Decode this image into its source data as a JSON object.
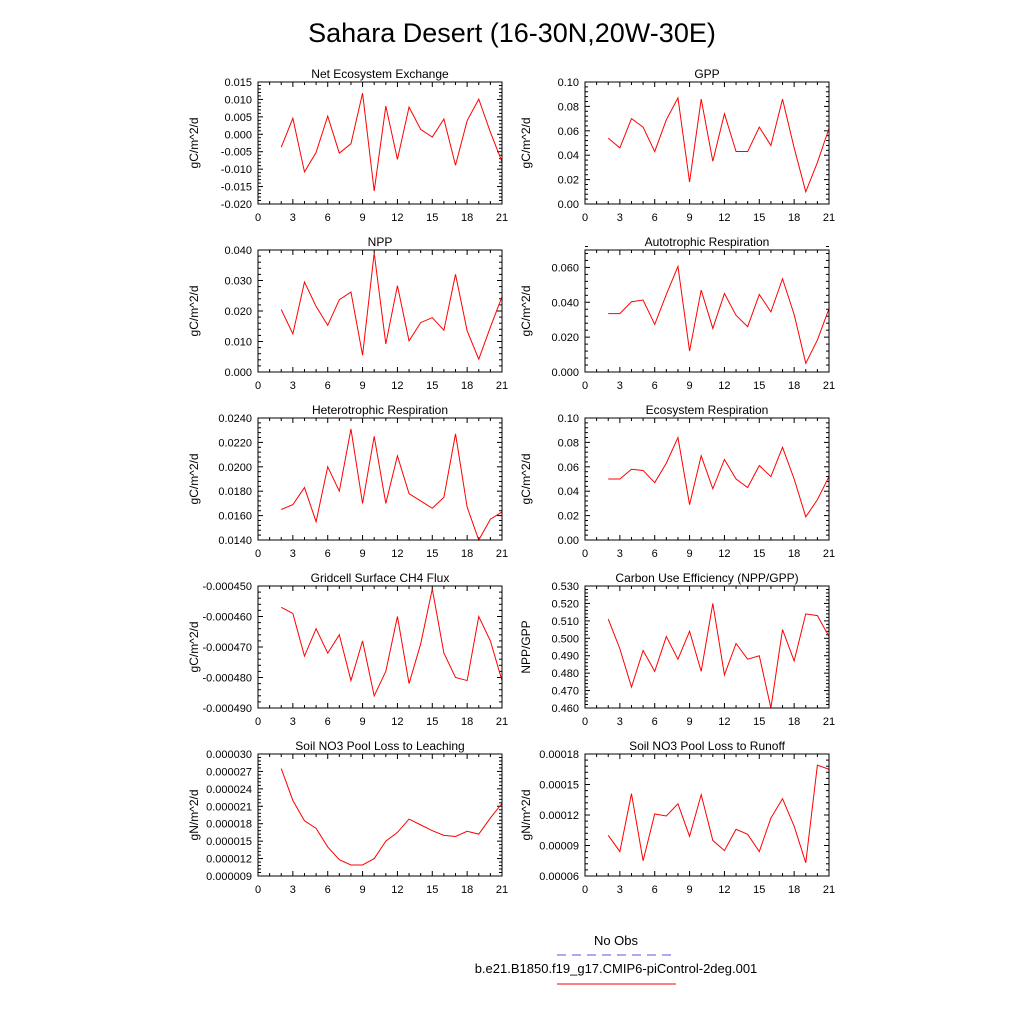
{
  "title": "Sahara Desert (16-30N,20W-30E)",
  "colors": {
    "series": "#ff0000",
    "obs": "#5555ee",
    "axis": "#000000"
  },
  "legend": {
    "obs_label": "No Obs",
    "model_label": "b.e21.B1850.f19_g17.CMIP6-piControl-2deg.001"
  },
  "chart_data": [
    {
      "type": "line",
      "title": "Net Ecosystem Exchange",
      "ylabel": "gC/m^2/d",
      "xlim": [
        0,
        21
      ],
      "xticks": [
        0,
        3,
        6,
        9,
        12,
        15,
        18,
        21
      ],
      "ylim": [
        -0.02,
        0.015
      ],
      "yticks": [
        -0.02,
        -0.015,
        -0.01,
        -0.005,
        0.0,
        0.005,
        0.01,
        0.015
      ],
      "ytick_labels": [
        "-0.020",
        "-0.015",
        "-0.010",
        "-0.005",
        "0.000",
        "0.005",
        "0.010",
        "0.015"
      ],
      "x": [
        2,
        3,
        4,
        5,
        6,
        7,
        8,
        9,
        10,
        11,
        12,
        13,
        14,
        15,
        16,
        17,
        18,
        19,
        20,
        21
      ],
      "series": [
        {
          "values": [
            -0.0037,
            0.0046,
            -0.0108,
            -0.0052,
            0.0052,
            -0.0054,
            -0.0027,
            0.0118,
            -0.0163,
            0.0081,
            -0.0072,
            0.0078,
            0.0014,
            -0.0008,
            0.0044,
            -0.0089,
            0.0039,
            0.0101,
            0.0006,
            -0.0079
          ]
        }
      ]
    },
    {
      "type": "line",
      "title": "GPP",
      "ylabel": "gC/m^2/d",
      "xlim": [
        0,
        21
      ],
      "xticks": [
        0,
        3,
        6,
        9,
        12,
        15,
        18,
        21
      ],
      "ylim": [
        0.0,
        0.1
      ],
      "yticks": [
        0.0,
        0.02,
        0.04,
        0.06,
        0.08,
        0.1
      ],
      "ytick_labels": [
        "0.00",
        "0.02",
        "0.04",
        "0.06",
        "0.08",
        "0.10"
      ],
      "x": [
        2,
        3,
        4,
        5,
        6,
        7,
        8,
        9,
        10,
        11,
        12,
        13,
        14,
        15,
        16,
        17,
        18,
        19,
        20,
        21
      ],
      "series": [
        {
          "values": [
            0.054,
            0.046,
            0.07,
            0.063,
            0.043,
            0.069,
            0.087,
            0.018,
            0.086,
            0.035,
            0.074,
            0.043,
            0.043,
            0.063,
            0.048,
            0.086,
            0.046,
            0.01,
            0.034,
            0.062
          ]
        }
      ]
    },
    {
      "type": "line",
      "title": "NPP",
      "ylabel": "gC/m^2/d",
      "xlim": [
        0,
        21
      ],
      "xticks": [
        0,
        3,
        6,
        9,
        12,
        15,
        18,
        21
      ],
      "ylim": [
        0.0,
        0.04
      ],
      "yticks": [
        0.0,
        0.01,
        0.02,
        0.03,
        0.04
      ],
      "ytick_labels": [
        "0.000",
        "0.010",
        "0.020",
        "0.030",
        "0.040"
      ],
      "x": [
        2,
        3,
        4,
        5,
        6,
        7,
        8,
        9,
        10,
        11,
        12,
        13,
        14,
        15,
        16,
        17,
        18,
        19,
        20,
        21
      ],
      "series": [
        {
          "values": [
            0.0205,
            0.0125,
            0.0295,
            0.0215,
            0.0153,
            0.0237,
            0.0262,
            0.0055,
            0.039,
            0.0092,
            0.0283,
            0.0102,
            0.0162,
            0.0178,
            0.0137,
            0.032,
            0.0135,
            0.0042,
            0.0147,
            0.0247
          ]
        }
      ]
    },
    {
      "type": "line",
      "title": "Autotrophic Respiration",
      "ylabel": "gC/m^2/d",
      "xlim": [
        0,
        21
      ],
      "xticks": [
        0,
        3,
        6,
        9,
        12,
        15,
        18,
        21
      ],
      "ylim": [
        0.0,
        0.07
      ],
      "yticks": [
        0.0,
        0.02,
        0.04,
        0.06
      ],
      "ytick_labels": [
        "0.000",
        "0.020",
        "0.040",
        "0.060"
      ],
      "x": [
        2,
        3,
        4,
        5,
        6,
        7,
        8,
        9,
        10,
        11,
        12,
        13,
        14,
        15,
        16,
        17,
        18,
        19,
        20,
        21
      ],
      "series": [
        {
          "values": [
            0.0335,
            0.0335,
            0.0403,
            0.0413,
            0.0273,
            0.0445,
            0.0606,
            0.012,
            0.047,
            0.025,
            0.045,
            0.0325,
            0.026,
            0.0445,
            0.0345,
            0.0535,
            0.033,
            0.005,
            0.0183,
            0.0363
          ]
        }
      ]
    },
    {
      "type": "line",
      "title": "Heterotrophic Respiration",
      "ylabel": "gC/m^2/d",
      "xlim": [
        0,
        21
      ],
      "xticks": [
        0,
        3,
        6,
        9,
        12,
        15,
        18,
        21
      ],
      "ylim": [
        0.014,
        0.024
      ],
      "yticks": [
        0.014,
        0.016,
        0.018,
        0.02,
        0.022,
        0.024
      ],
      "ytick_labels": [
        "0.0140",
        "0.0160",
        "0.0180",
        "0.0200",
        "0.0220",
        "0.0240"
      ],
      "x": [
        2,
        3,
        4,
        5,
        6,
        7,
        8,
        9,
        10,
        11,
        12,
        13,
        14,
        15,
        16,
        17,
        18,
        19,
        20,
        21
      ],
      "series": [
        {
          "values": [
            0.0165,
            0.0169,
            0.0183,
            0.0155,
            0.02,
            0.018,
            0.0231,
            0.017,
            0.0225,
            0.017,
            0.0209,
            0.0178,
            0.0172,
            0.0166,
            0.0175,
            0.0227,
            0.0167,
            0.014,
            0.0157,
            0.0163
          ]
        }
      ]
    },
    {
      "type": "line",
      "title": "Ecosystem Respiration",
      "ylabel": "gC/m^2/d",
      "xlim": [
        0,
        21
      ],
      "xticks": [
        0,
        3,
        6,
        9,
        12,
        15,
        18,
        21
      ],
      "ylim": [
        0.0,
        0.1
      ],
      "yticks": [
        0.0,
        0.02,
        0.04,
        0.06,
        0.08,
        0.1
      ],
      "ytick_labels": [
        "0.00",
        "0.02",
        "0.04",
        "0.06",
        "0.08",
        "0.10"
      ],
      "x": [
        2,
        3,
        4,
        5,
        6,
        7,
        8,
        9,
        10,
        11,
        12,
        13,
        14,
        15,
        16,
        17,
        18,
        19,
        20,
        21
      ],
      "series": [
        {
          "values": [
            0.05,
            0.05,
            0.058,
            0.057,
            0.047,
            0.063,
            0.084,
            0.029,
            0.069,
            0.042,
            0.066,
            0.05,
            0.043,
            0.061,
            0.052,
            0.076,
            0.05,
            0.019,
            0.033,
            0.052
          ]
        }
      ]
    },
    {
      "type": "line",
      "title": "Gridcell Surface CH4 Flux",
      "ylabel": "gC/m^2/d",
      "xlim": [
        0,
        21
      ],
      "xticks": [
        0,
        3,
        6,
        9,
        12,
        15,
        18,
        21
      ],
      "ylim": [
        -0.00049,
        -0.00045
      ],
      "yticks": [
        -0.00049,
        -0.00048,
        -0.00047,
        -0.00046,
        -0.00045
      ],
      "ytick_labels": [
        "-0.000490",
        "-0.000480",
        "-0.000470",
        "-0.000460",
        "-0.000450"
      ],
      "x": [
        2,
        3,
        4,
        5,
        6,
        7,
        8,
        9,
        10,
        11,
        12,
        13,
        14,
        15,
        16,
        17,
        18,
        19,
        20,
        21
      ],
      "series": [
        {
          "values": [
            -0.000457,
            -0.000459,
            -0.000473,
            -0.000464,
            -0.000472,
            -0.000466,
            -0.000481,
            -0.000468,
            -0.000486,
            -0.000478,
            -0.00046,
            -0.000482,
            -0.000469,
            -0.000451,
            -0.000472,
            -0.00048,
            -0.000481,
            -0.00046,
            -0.000468,
            -0.000481
          ]
        }
      ]
    },
    {
      "type": "line",
      "title": "Carbon Use Efficiency (NPP/GPP)",
      "ylabel": "NPP/GPP",
      "xlim": [
        0,
        21
      ],
      "xticks": [
        0,
        3,
        6,
        9,
        12,
        15,
        18,
        21
      ],
      "ylim": [
        0.46,
        0.53
      ],
      "yticks": [
        0.46,
        0.47,
        0.48,
        0.49,
        0.5,
        0.51,
        0.52,
        0.53
      ],
      "ytick_labels": [
        "0.460",
        "0.470",
        "0.480",
        "0.490",
        "0.500",
        "0.510",
        "0.520",
        "0.530"
      ],
      "x": [
        2,
        3,
        4,
        5,
        6,
        7,
        8,
        9,
        10,
        11,
        12,
        13,
        14,
        15,
        16,
        17,
        18,
        19,
        20,
        21
      ],
      "series": [
        {
          "values": [
            0.511,
            0.494,
            0.472,
            0.493,
            0.481,
            0.501,
            0.488,
            0.504,
            0.481,
            0.52,
            0.479,
            0.497,
            0.488,
            0.49,
            0.46,
            0.505,
            0.487,
            0.514,
            0.513,
            0.501
          ]
        }
      ]
    },
    {
      "type": "line",
      "title": "Soil NO3 Pool Loss to Leaching",
      "ylabel": "gN/m^2/d",
      "xlim": [
        0,
        21
      ],
      "xticks": [
        0,
        3,
        6,
        9,
        12,
        15,
        18,
        21
      ],
      "ylim": [
        9e-06,
        3e-05
      ],
      "yticks": [
        9e-06,
        1.2e-05,
        1.5e-05,
        1.8e-05,
        2.1e-05,
        2.4e-05,
        2.7e-05,
        3e-05
      ],
      "ytick_labels": [
        "0.000009",
        "0.000012",
        "0.000015",
        "0.000018",
        "0.000021",
        "0.000024",
        "0.000027",
        "0.000030"
      ],
      "x": [
        2,
        3,
        4,
        5,
        6,
        7,
        8,
        9,
        10,
        11,
        12,
        13,
        14,
        15,
        16,
        17,
        18,
        19,
        20,
        21
      ],
      "series": [
        {
          "values": [
            2.75e-05,
            2.2e-05,
            1.85e-05,
            1.72e-05,
            1.4e-05,
            1.18e-05,
            1.09e-05,
            1.09e-05,
            1.2e-05,
            1.5e-05,
            1.65e-05,
            1.88e-05,
            1.78e-05,
            1.68e-05,
            1.6e-05,
            1.58e-05,
            1.67e-05,
            1.62e-05,
            1.9e-05,
            2.15e-05
          ]
        }
      ]
    },
    {
      "type": "line",
      "title": "Soil NO3 Pool Loss to Runoff",
      "ylabel": "gN/m^2/d",
      "xlim": [
        0,
        21
      ],
      "xticks": [
        0,
        3,
        6,
        9,
        12,
        15,
        18,
        21
      ],
      "ylim": [
        6e-05,
        0.00018
      ],
      "yticks": [
        6e-05,
        9e-05,
        0.00012,
        0.00015,
        0.00018
      ],
      "ytick_labels": [
        "0.00006",
        "0.00009",
        "0.00012",
        "0.00015",
        "0.00018"
      ],
      "x": [
        2,
        3,
        4,
        5,
        6,
        7,
        8,
        9,
        10,
        11,
        12,
        13,
        14,
        15,
        16,
        17,
        18,
        19,
        20,
        21
      ],
      "series": [
        {
          "values": [
            0.0001,
            8.4e-05,
            0.000141,
            7.5e-05,
            0.000121,
            0.000119,
            0.000131,
            9.9e-05,
            0.00014,
            9.5e-05,
            8.5e-05,
            0.000106,
            0.000101,
            8.4e-05,
            0.000117,
            0.000136,
            0.000109,
            7.3e-05,
            0.000169,
            0.000165
          ]
        }
      ]
    }
  ]
}
